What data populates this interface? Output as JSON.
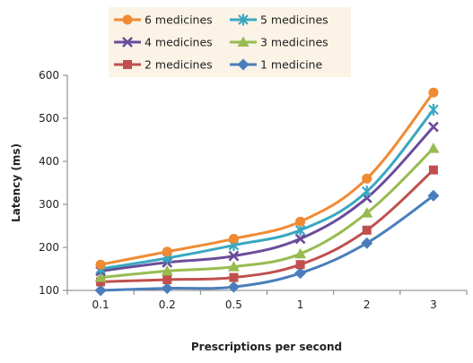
{
  "chart_data": {
    "type": "line",
    "title": "",
    "xlabel": "Prescriptions per second",
    "ylabel": "Latency (ms)",
    "categories": [
      "0.1",
      "0.2",
      "0.5",
      "1",
      "2",
      "3"
    ],
    "ylim": [
      100,
      600
    ],
    "yticks": [
      "100",
      "200",
      "300",
      "400",
      "500",
      "600"
    ],
    "grid": false,
    "legend_position": "top",
    "series": [
      {
        "name": "6 medicines",
        "color": "#F08A33",
        "marker": "circle",
        "values": [
          160,
          190,
          220,
          260,
          360,
          560
        ]
      },
      {
        "name": "5 medicines",
        "color": "#3AA8C1",
        "marker": "asterisk",
        "values": [
          150,
          175,
          205,
          240,
          330,
          520
        ]
      },
      {
        "name": "4 medicines",
        "color": "#6B4C9A",
        "marker": "x",
        "values": [
          145,
          165,
          180,
          220,
          315,
          480
        ]
      },
      {
        "name": "3 medicines",
        "color": "#98BB50",
        "marker": "triangle",
        "values": [
          130,
          145,
          155,
          185,
          280,
          430
        ]
      },
      {
        "name": "2 medicines",
        "color": "#C0504D",
        "marker": "square",
        "values": [
          120,
          125,
          130,
          160,
          240,
          380
        ]
      },
      {
        "name": "1 medicine",
        "color": "#4A7EBB",
        "marker": "diamond",
        "values": [
          100,
          105,
          108,
          140,
          210,
          320
        ]
      }
    ],
    "legend_background": "#FAF3E6"
  }
}
